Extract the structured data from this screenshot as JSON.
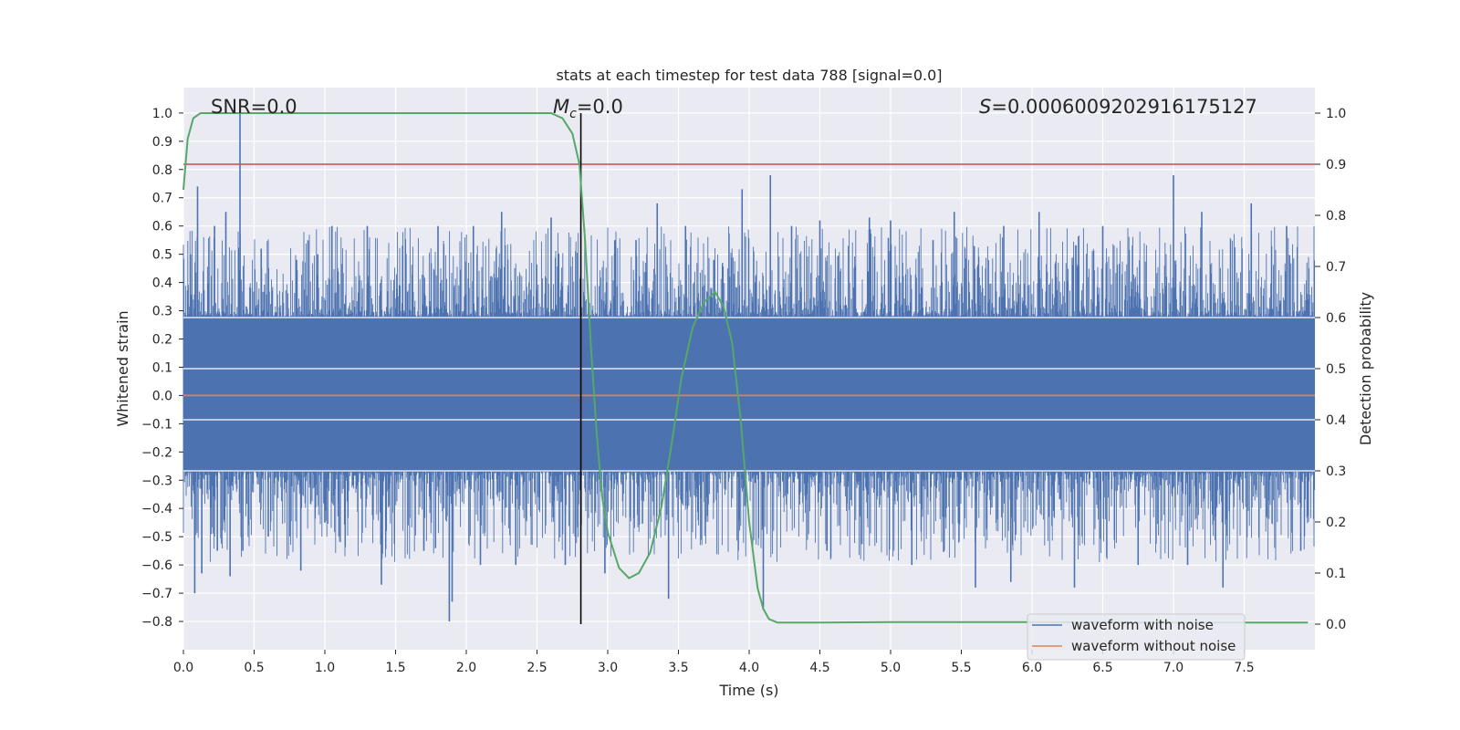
{
  "chart_data": {
    "type": "line",
    "title": "stats at each timestep for test data 788 [signal=0.0]",
    "xlabel": "Time (s)",
    "ylabel": "Whitened strain",
    "y2label": "Detection probability",
    "xlim": [
      0.0,
      8.0
    ],
    "ylim": [
      -0.9,
      1.09
    ],
    "y2lim": [
      -0.05,
      1.05
    ],
    "xticks": [
      0.0,
      0.5,
      1.0,
      1.5,
      2.0,
      2.5,
      3.0,
      3.5,
      4.0,
      4.5,
      5.0,
      5.5,
      6.0,
      6.5,
      7.0,
      7.5
    ],
    "yticks": [
      1.0,
      0.9,
      0.8,
      0.7,
      0.6,
      0.5,
      0.4,
      0.3,
      0.2,
      0.1,
      0.0,
      -0.1,
      -0.2,
      -0.3,
      -0.4,
      -0.5,
      -0.6,
      -0.7,
      -0.8
    ],
    "y2ticks": [
      1.0,
      0.9,
      0.8,
      0.7,
      0.6,
      0.5,
      0.4,
      0.3,
      0.2,
      0.1,
      0.0
    ],
    "grid": true,
    "legend_position": "bottom-right",
    "annotations": {
      "snr": "SNR=0.0",
      "mc_symbol": "M",
      "mc_sub": "c",
      "mc_value": "=0.0",
      "s_symbol": "S",
      "s_value": "=0.0006009202916175127"
    },
    "threshold": {
      "axis": "right",
      "value": 0.9,
      "color": "#c44e52"
    },
    "marker_time": 2.81,
    "noise_envelope": {
      "name": "waveform with noise",
      "color": "#4c72b0",
      "dense_band": [
        -0.27,
        0.28
      ],
      "spikes": [
        [
          0.05,
          0.5
        ],
        [
          0.08,
          -0.7
        ],
        [
          0.1,
          0.74
        ],
        [
          0.13,
          -0.63
        ],
        [
          0.22,
          0.6
        ],
        [
          0.24,
          -0.55
        ],
        [
          0.3,
          0.65
        ],
        [
          0.33,
          -0.64
        ],
        [
          0.4,
          1.0
        ],
        [
          0.42,
          -0.55
        ],
        [
          0.55,
          0.52
        ],
        [
          0.6,
          -0.5
        ],
        [
          0.8,
          0.48
        ],
        [
          0.83,
          -0.62
        ],
        [
          0.95,
          0.5
        ],
        [
          1.0,
          -0.45
        ],
        [
          1.05,
          0.6
        ],
        [
          1.1,
          -0.5
        ],
        [
          1.3,
          0.6
        ],
        [
          1.4,
          -0.67
        ],
        [
          1.55,
          0.53
        ],
        [
          1.7,
          -0.55
        ],
        [
          1.8,
          0.6
        ],
        [
          1.88,
          -0.8
        ],
        [
          1.9,
          -0.73
        ],
        [
          2.05,
          0.6
        ],
        [
          2.1,
          -0.6
        ],
        [
          2.25,
          0.65
        ],
        [
          2.35,
          -0.6
        ],
        [
          2.6,
          0.63
        ],
        [
          2.7,
          -0.6
        ],
        [
          2.98,
          -0.63
        ],
        [
          3.05,
          0.55
        ],
        [
          3.2,
          0.55
        ],
        [
          3.35,
          0.68
        ],
        [
          3.43,
          -0.72
        ],
        [
          3.55,
          0.6
        ],
        [
          3.75,
          0.48
        ],
        [
          3.95,
          0.73
        ],
        [
          4.1,
          -0.75
        ],
        [
          4.15,
          0.78
        ],
        [
          4.3,
          0.6
        ],
        [
          4.5,
          0.62
        ],
        [
          4.55,
          -0.55
        ],
        [
          4.85,
          0.63
        ],
        [
          5.0,
          0.62
        ],
        [
          5.15,
          -0.6
        ],
        [
          5.3,
          0.55
        ],
        [
          5.45,
          0.65
        ],
        [
          5.6,
          -0.68
        ],
        [
          5.8,
          0.6
        ],
        [
          5.85,
          -0.66
        ],
        [
          6.05,
          0.65
        ],
        [
          6.3,
          -0.68
        ],
        [
          6.5,
          0.6
        ],
        [
          6.75,
          -0.6
        ],
        [
          7.0,
          0.78
        ],
        [
          7.1,
          -0.6
        ],
        [
          7.2,
          0.65
        ],
        [
          7.35,
          -0.68
        ],
        [
          7.55,
          0.68
        ],
        [
          7.8,
          0.6
        ],
        [
          7.9,
          -0.55
        ]
      ]
    },
    "series": [
      {
        "name": "waveform without noise",
        "axis": "left",
        "color": "#dd8452",
        "x": [
          0.0,
          8.0
        ],
        "values": [
          0.0,
          0.0
        ]
      },
      {
        "axis": "right",
        "color": "#55a868",
        "x": [
          0.0,
          0.03,
          0.07,
          0.12,
          0.3,
          1.0,
          2.0,
          2.6,
          2.68,
          2.75,
          2.8,
          2.84,
          2.88,
          2.92,
          2.96,
          3.0,
          3.08,
          3.15,
          3.22,
          3.3,
          3.38,
          3.45,
          3.52,
          3.6,
          3.68,
          3.76,
          3.82,
          3.88,
          3.94,
          4.0,
          4.06,
          4.1,
          4.14,
          4.2,
          4.5,
          5.0,
          6.0,
          7.0,
          7.95
        ],
        "values": [
          0.85,
          0.95,
          0.99,
          1.0,
          1.0,
          1.0,
          1.0,
          1.0,
          0.99,
          0.96,
          0.9,
          0.75,
          0.55,
          0.38,
          0.25,
          0.18,
          0.11,
          0.09,
          0.1,
          0.14,
          0.23,
          0.35,
          0.48,
          0.58,
          0.63,
          0.65,
          0.62,
          0.55,
          0.4,
          0.2,
          0.07,
          0.03,
          0.01,
          0.003,
          0.003,
          0.004,
          0.004,
          0.003,
          0.003
        ]
      }
    ]
  }
}
